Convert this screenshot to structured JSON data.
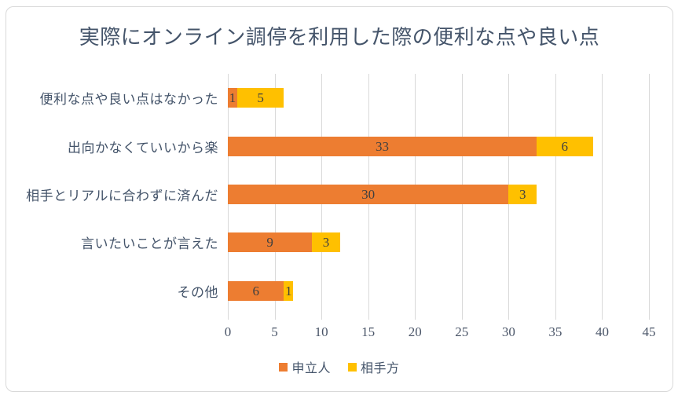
{
  "chart_data": {
    "type": "bar",
    "orientation": "horizontal",
    "stacked": true,
    "title": "実際にオンライン調停を利用した際の便利な点や良い点",
    "categories": [
      "便利な点や良い点はなかった",
      "出向かなくていいから楽",
      "相手とリアルに合わずに済んだ",
      "言いたいことが言えた",
      "その他"
    ],
    "series": [
      {
        "name": "申立人",
        "color": "#ED7D31",
        "values": [
          1,
          33,
          30,
          9,
          6
        ]
      },
      {
        "name": "相手方",
        "color": "#FFC000",
        "values": [
          5,
          6,
          3,
          3,
          1
        ]
      }
    ],
    "xlim": [
      0,
      45
    ],
    "xticks": [
      0,
      5,
      10,
      15,
      20,
      25,
      30,
      35,
      40,
      45
    ],
    "grid": true,
    "legend_position": "bottom",
    "data_labels_shown": true
  },
  "colors": {
    "background": "#FFFFFF",
    "frame_border": "#D9D9D9",
    "gridline": "#D9D9D9",
    "title_text": "#44546A",
    "axis_text": "#4A5568",
    "category_text": "#44546A",
    "value_label_text": "#404040"
  }
}
